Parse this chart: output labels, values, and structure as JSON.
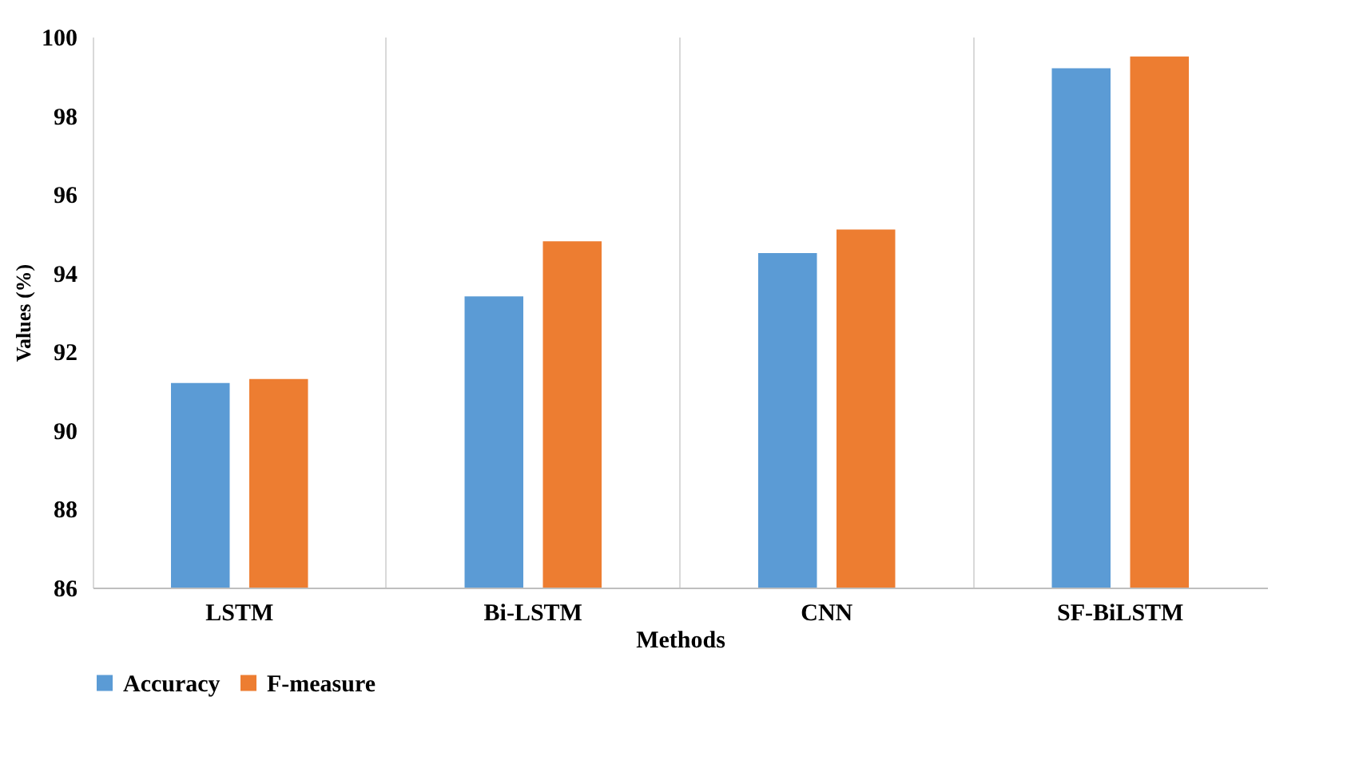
{
  "chart_data": {
    "type": "bar",
    "xlabel": "Methods",
    "ylabel": "Values (%)",
    "categories": [
      "LSTM",
      "Bi-LSTM",
      "CNN",
      "SF-BiLSTM"
    ],
    "series": [
      {
        "name": "Accuracy",
        "color": "#5b9bd5",
        "values": [
          91.2,
          93.4,
          94.5,
          99.2
        ]
      },
      {
        "name": "F-measure",
        "color": "#ed7d31",
        "values": [
          91.3,
          94.8,
          95.1,
          99.5
        ]
      }
    ],
    "ylim": [
      86,
      100
    ],
    "yticks": [
      86,
      88,
      90,
      92,
      94,
      96,
      98,
      100
    ],
    "grid": "x",
    "legend": "bottom"
  }
}
